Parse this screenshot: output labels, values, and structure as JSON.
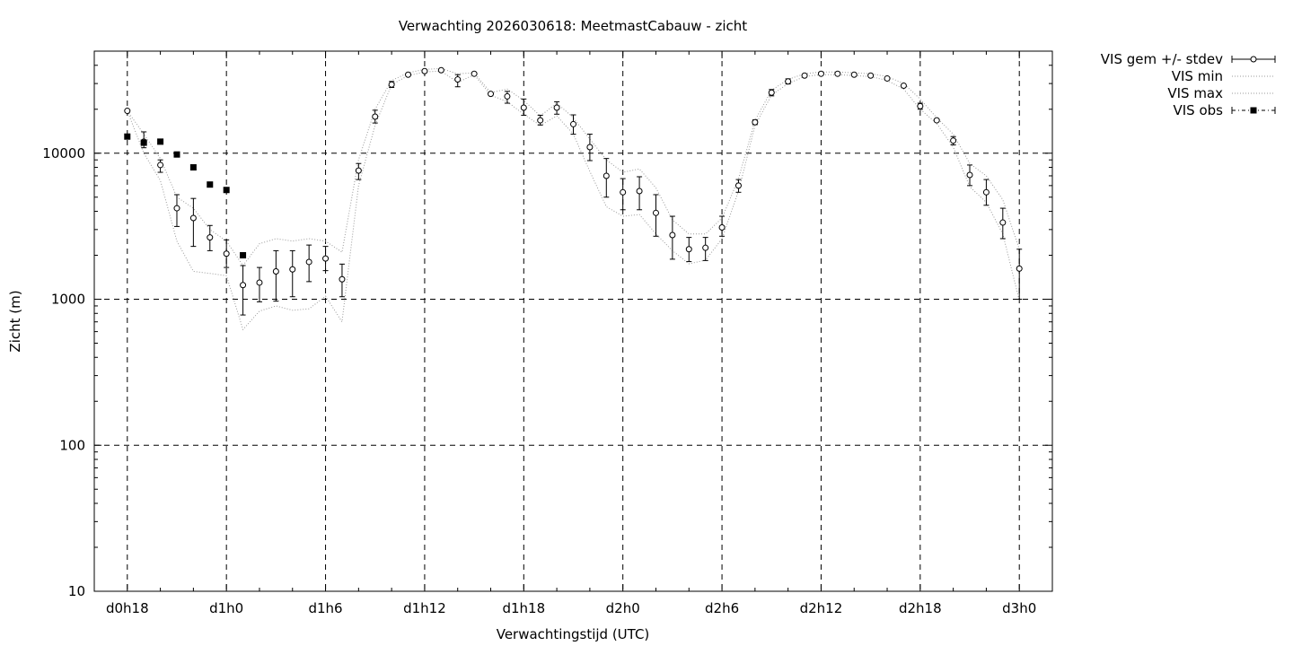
{
  "chart_data": {
    "type": "line",
    "title": "Verwachting 2026030618: MeetmastCabauw - zicht",
    "xlabel": "Verwachtingstijd (UTC)",
    "ylabel": "Zicht (m)",
    "yscale": "log",
    "ylim": [
      10,
      50000
    ],
    "xlim": [
      -2,
      56
    ],
    "x_unit": "hours from d0h18",
    "grid": "dashed, at labeled ticks",
    "legend_position": "outside-right-top",
    "x_ticks": [
      {
        "x": 0,
        "label": "d0h18"
      },
      {
        "x": 6,
        "label": "d1h0"
      },
      {
        "x": 12,
        "label": "d1h6"
      },
      {
        "x": 18,
        "label": "d1h12"
      },
      {
        "x": 24,
        "label": "d1h18"
      },
      {
        "x": 30,
        "label": "d2h0"
      },
      {
        "x": 36,
        "label": "d2h6"
      },
      {
        "x": 42,
        "label": "d2h12"
      },
      {
        "x": 48,
        "label": "d2h18"
      },
      {
        "x": 54,
        "label": "d3h0"
      }
    ],
    "y_ticks": [
      {
        "y": 10,
        "label": "10"
      },
      {
        "y": 100,
        "label": "100"
      },
      {
        "y": 1000,
        "label": "1000"
      },
      {
        "y": 10000,
        "label": "10000"
      }
    ],
    "series": [
      {
        "name": "VIS gem +/- stdev",
        "style": "errorbars-open-circle",
        "x": [
          0,
          1,
          2,
          3,
          4,
          5,
          6,
          7,
          8,
          9,
          10,
          11,
          12,
          13,
          14,
          15,
          16,
          17,
          18,
          19,
          20,
          21,
          22,
          23,
          24,
          25,
          26,
          27,
          28,
          29,
          30,
          31,
          32,
          33,
          34,
          35,
          36,
          37,
          38,
          39,
          40,
          41,
          42,
          43,
          44,
          45,
          46,
          47,
          48,
          49,
          50,
          51,
          52,
          53,
          54
        ],
        "mean": [
          19500,
          12000,
          8300,
          4200,
          3600,
          2650,
          2050,
          1250,
          1300,
          1550,
          1600,
          1800,
          1900,
          1370,
          7600,
          17800,
          29500,
          34500,
          36500,
          37000,
          32000,
          35000,
          25500,
          24500,
          20500,
          16800,
          20500,
          15800,
          11000,
          7000,
          5400,
          5500,
          3900,
          2750,
          2200,
          2250,
          3100,
          6000,
          16300,
          26000,
          31000,
          34000,
          35000,
          35000,
          34500,
          34000,
          32500,
          29000,
          21000,
          16800,
          12200,
          7100,
          5400,
          3350,
          1620
        ],
        "low": [
          19500,
          10900,
          7400,
          3150,
          2300,
          2150,
          1650,
          780,
          960,
          970,
          1040,
          1320,
          1570,
          1040,
          6600,
          16100,
          28200,
          34500,
          36500,
          37000,
          28500,
          35000,
          25500,
          22000,
          18200,
          15600,
          18500,
          13500,
          8900,
          5000,
          4100,
          4100,
          2700,
          1880,
          1810,
          1840,
          2700,
          5400,
          15700,
          24700,
          29800,
          34000,
          35000,
          35000,
          34500,
          34000,
          32500,
          29000,
          20000,
          16800,
          11400,
          6000,
          4400,
          2600,
          1000
        ],
        "high": [
          19500,
          14000,
          9000,
          5200,
          4900,
          3200,
          2550,
          1700,
          1650,
          2150,
          2150,
          2350,
          2300,
          1740,
          8500,
          19700,
          31000,
          34500,
          36500,
          37000,
          34500,
          35000,
          25500,
          26500,
          23500,
          18200,
          22500,
          18300,
          13500,
          9200,
          6700,
          6900,
          5200,
          3700,
          2650,
          2650,
          3700,
          6600,
          16900,
          27300,
          32300,
          34000,
          35000,
          35000,
          34500,
          34000,
          32500,
          29000,
          22000,
          16800,
          13000,
          8300,
          6600,
          4200,
          2200
        ]
      },
      {
        "name": "VIS min",
        "style": "dotted-line",
        "x": [
          0,
          1,
          2,
          3,
          4,
          5,
          6,
          7,
          8,
          9,
          10,
          11,
          12,
          13,
          14,
          15,
          16,
          17,
          18,
          19,
          20,
          21,
          22,
          23,
          24,
          25,
          26,
          27,
          28,
          29,
          30,
          31,
          32,
          33,
          34,
          35,
          36,
          37,
          38,
          39,
          40,
          41,
          42,
          43,
          44,
          45,
          46,
          47,
          48,
          49,
          50,
          51,
          52,
          53,
          54
        ],
        "values": [
          19500,
          10000,
          6500,
          2500,
          1550,
          1500,
          1450,
          620,
          830,
          900,
          840,
          860,
          1050,
          700,
          6000,
          15500,
          29500,
          34000,
          36000,
          36500,
          30500,
          34500,
          25000,
          22500,
          18500,
          15500,
          18000,
          13500,
          7500,
          4300,
          3700,
          3800,
          2800,
          2150,
          1750,
          1850,
          2600,
          5500,
          15500,
          25000,
          30000,
          33500,
          34500,
          34500,
          34000,
          33500,
          31500,
          27500,
          20000,
          16000,
          11000,
          5900,
          4600,
          2800,
          980
        ]
      },
      {
        "name": "VIS max",
        "style": "dotted-line",
        "x": [
          0,
          1,
          2,
          3,
          4,
          5,
          6,
          7,
          8,
          9,
          10,
          11,
          12,
          13,
          14,
          15,
          16,
          17,
          18,
          19,
          20,
          21,
          22,
          23,
          24,
          25,
          26,
          27,
          28,
          29,
          30,
          31,
          32,
          33,
          34,
          35,
          36,
          37,
          38,
          39,
          40,
          41,
          42,
          43,
          44,
          45,
          46,
          47,
          48,
          49,
          50,
          51,
          52,
          53,
          54
        ],
        "values": [
          19500,
          13500,
          9200,
          5000,
          4200,
          3000,
          2500,
          1700,
          2400,
          2600,
          2500,
          2600,
          2500,
          2100,
          9000,
          20000,
          31500,
          35500,
          37500,
          38000,
          35000,
          35500,
          26000,
          27500,
          23000,
          18000,
          22000,
          17500,
          12500,
          9000,
          7400,
          7800,
          5800,
          3500,
          2800,
          2800,
          3600,
          6700,
          16800,
          27000,
          32000,
          35000,
          36000,
          36000,
          35500,
          35000,
          33500,
          30000,
          23500,
          17500,
          13500,
          8500,
          7000,
          4800,
          2200
        ]
      },
      {
        "name": "VIS obs",
        "style": "filled-square",
        "x": [
          0,
          1,
          2,
          3,
          4,
          5,
          6,
          7
        ],
        "values": [
          13000,
          11800,
          12000,
          9800,
          8000,
          6100,
          5600,
          2000
        ]
      }
    ]
  }
}
